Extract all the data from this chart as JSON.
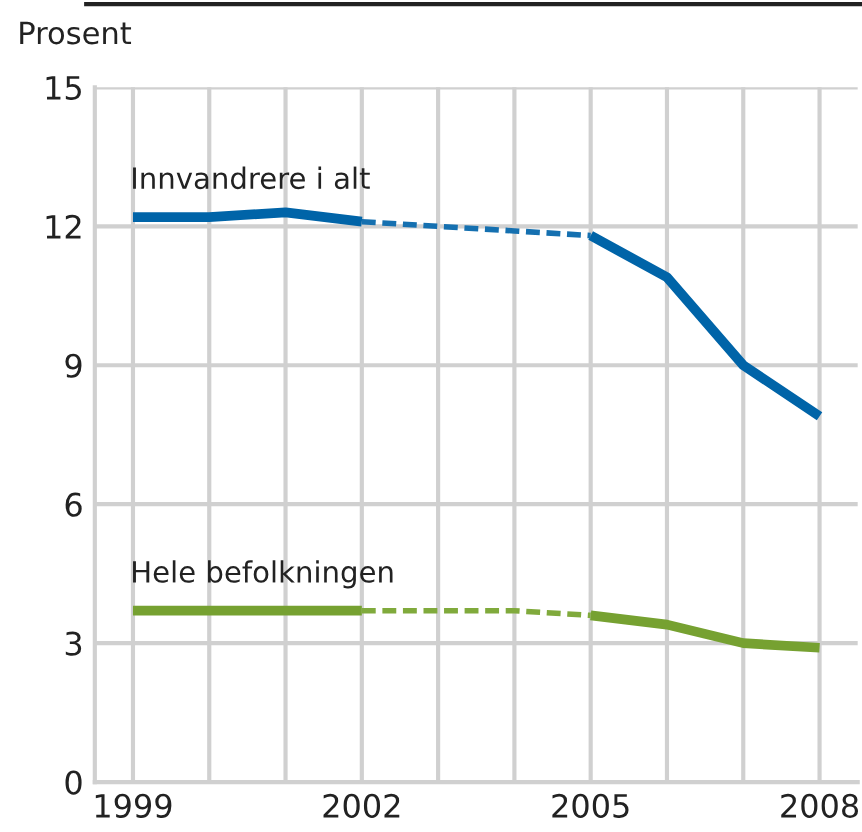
{
  "chart_data": {
    "type": "line",
    "ylabel": "Prosent",
    "x": [
      1999,
      2000,
      2001,
      2002,
      2003,
      2004,
      2005,
      2006,
      2007,
      2008
    ],
    "series": [
      {
        "name": "Innvandrere i alt",
        "color": "#0064a8",
        "values": [
          12.2,
          12.2,
          12.3,
          12.1,
          null,
          null,
          11.8,
          10.9,
          9.0,
          7.9
        ]
      },
      {
        "color": "#1570b0",
        "values": [
          null,
          null,
          null,
          12.1,
          12.0,
          11.9,
          11.8,
          null,
          null,
          null
        ],
        "line_style": "dashed"
      },
      {
        "name": "Hele befolkningen",
        "color": "#76a131",
        "values": [
          3.7,
          3.7,
          3.7,
          3.7,
          null,
          null,
          3.6,
          3.4,
          3.0,
          2.9
        ]
      },
      {
        "color": "#80aa3c",
        "values": [
          null,
          null,
          null,
          3.7,
          3.7,
          3.7,
          3.6,
          null,
          null,
          null
        ],
        "line_style": "dashed"
      }
    ],
    "xlim": [
      1998.5,
      2008.5
    ],
    "ylim": [
      0,
      15
    ],
    "xticks": [
      1999,
      {
        "value": 2000,
        "label": null
      },
      {
        "value": 2001,
        "label": null
      },
      2002,
      {
        "value": 2003,
        "label": null
      },
      {
        "value": 2004,
        "label": null
      },
      2005,
      {
        "value": 2006,
        "label": null
      },
      {
        "value": 2007,
        "label": null
      },
      2008
    ],
    "yticks": [
      0,
      3,
      6,
      9,
      12,
      15
    ],
    "grid": true,
    "legend": false,
    "marker": "none",
    "line_style": "solid"
  }
}
